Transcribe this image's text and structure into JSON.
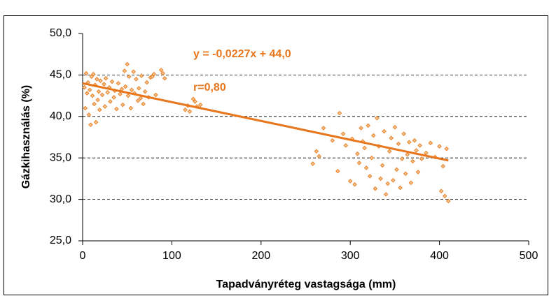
{
  "chart_data": {
    "type": "scatter",
    "x_label": "Tapadványréteg vastagsága (mm)",
    "y_label": "Gázkihasználás (%)",
    "annotations": [
      "y = -0,0227x + 44,0",
      "r=0,80"
    ],
    "color": "#e8822a",
    "trend_color": "#e8761c",
    "xlim": [
      0,
      500
    ],
    "xticks": [
      0,
      100,
      200,
      300,
      400,
      500
    ],
    "ylim": [
      25,
      50
    ],
    "yticks": [
      {
        "value": 25,
        "label": "25,0"
      },
      {
        "value": 30,
        "label": "30,0"
      },
      {
        "value": 35,
        "label": "35,0"
      },
      {
        "value": 40,
        "label": "40,0"
      },
      {
        "value": 45,
        "label": "45,0"
      },
      {
        "value": 50,
        "label": "50,0"
      }
    ],
    "grid": true,
    "trendline": {
      "x": [
        0,
        410
      ],
      "y": [
        44.0,
        34.69
      ]
    },
    "x": [
      2,
      3,
      4,
      5,
      6,
      7,
      8,
      9,
      10,
      11,
      12,
      13,
      14,
      15,
      16,
      17,
      18,
      19,
      20,
      22,
      24,
      25,
      26,
      28,
      30,
      31,
      33,
      35,
      36,
      38,
      40,
      42,
      44,
      45,
      47,
      48,
      50,
      51,
      52,
      54,
      55,
      57,
      58,
      60,
      62,
      63,
      65,
      66,
      68,
      70,
      72,
      74,
      76,
      78,
      80,
      82,
      88,
      90,
      92,
      115,
      118,
      120,
      124,
      126,
      128,
      132,
      258,
      262,
      265,
      270,
      280,
      286,
      288,
      292,
      295,
      300,
      302,
      305,
      308,
      310,
      312,
      314,
      316,
      318,
      320,
      322,
      324,
      326,
      328,
      330,
      332,
      334,
      336,
      338,
      340,
      342,
      344,
      346,
      348,
      350,
      352,
      354,
      356,
      358,
      360,
      362,
      364,
      366,
      368,
      370,
      372,
      374,
      376,
      378,
      380,
      385,
      390,
      395,
      400,
      402,
      404,
      406,
      410,
      408
    ],
    "values": [
      43.5,
      41,
      45.2,
      42.8,
      44.1,
      40.2,
      43.2,
      39,
      44.8,
      42.5,
      45.1,
      41.5,
      43.8,
      39.3,
      44.5,
      42,
      43,
      40.8,
      44.3,
      42.6,
      43.9,
      41.2,
      44.6,
      42.9,
      43.5,
      41.8,
      44.2,
      42.3,
      43.1,
      40.9,
      44,
      42.7,
      43.3,
      41.4,
      45.5,
      43.6,
      46.3,
      42.5,
      44.8,
      41,
      43.2,
      45.4,
      42.8,
      44.5,
      41.9,
      43.4,
      42.2,
      44.9,
      41.5,
      43,
      44.1,
      42.3,
      44.7,
      44.8,
      45.1,
      42.6,
      45.6,
      45.2,
      44.6,
      40.8,
      41.3,
      40.6,
      42.1,
      41.8,
      41.2,
      41.4,
      34.3,
      35.8,
      35.2,
      38.6,
      37.1,
      33.4,
      40.4,
      37.9,
      36.5,
      32.2,
      37.3,
      31.8,
      35.5,
      34.4,
      38.6,
      37,
      36.2,
      33.8,
      38.9,
      32.8,
      35,
      37.7,
      31.3,
      39.8,
      36.4,
      32.5,
      34.1,
      38.2,
      30.6,
      31.9,
      35.8,
      37.4,
      32.3,
      38.7,
      33.6,
      36.7,
      31.4,
      34.9,
      37.9,
      33.1,
      35.4,
      36.9,
      32,
      34.6,
      37.1,
      35.9,
      33.3,
      36.5,
      34.9,
      35.6,
      36.8,
      35.1,
      36.4,
      31,
      34,
      30.4,
      29.8,
      36.1
    ]
  }
}
